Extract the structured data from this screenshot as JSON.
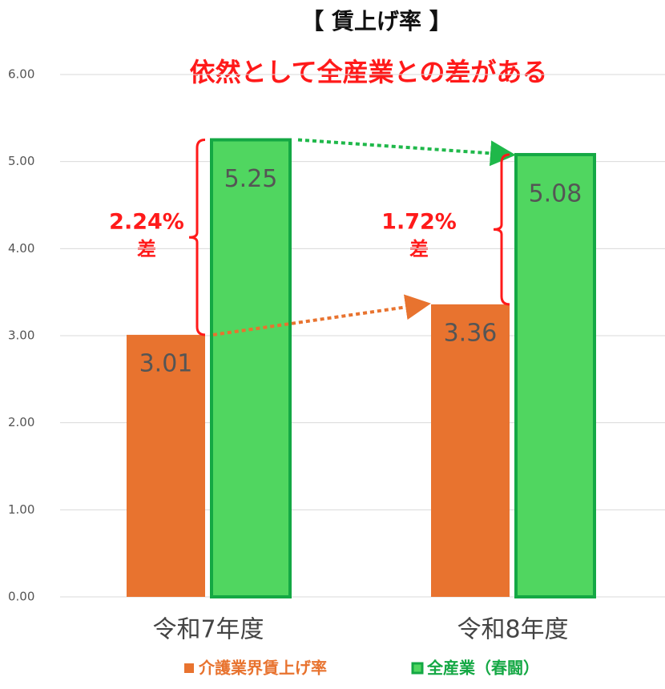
{
  "chart_data": {
    "type": "bar",
    "title": "【 賃上げ率 】",
    "subtitle": "依然として全産業との差がある",
    "categories": [
      "令和7年度",
      "令和8年度"
    ],
    "series": [
      {
        "name": "介護業界賃上げ率",
        "color": "#e8732f",
        "values": [
          3.01,
          3.36
        ]
      },
      {
        "name": "全産業（春闘）",
        "color": "#50d660",
        "values": [
          5.25,
          5.08
        ]
      }
    ],
    "ylim": [
      0,
      6
    ],
    "yticks": [
      {
        "value": 0,
        "label": "0.00"
      },
      {
        "value": 1,
        "label": "1.00"
      },
      {
        "value": 2,
        "label": "2.00"
      },
      {
        "value": 3,
        "label": "3.00"
      },
      {
        "value": 4,
        "label": "4.00"
      },
      {
        "value": 5,
        "label": "5.00"
      },
      {
        "value": 6,
        "label": "6.00"
      }
    ],
    "grid": true,
    "annotations": [
      "2.24%",
      "差",
      "1.72%",
      "差"
    ]
  }
}
